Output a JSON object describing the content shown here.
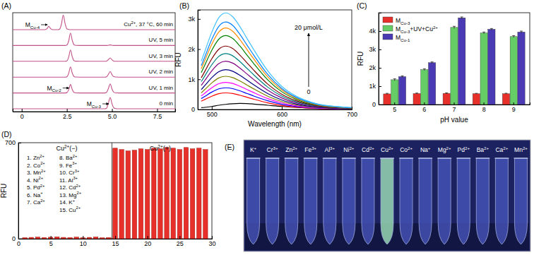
{
  "chart_data": [
    {
      "type": "line",
      "title": "(A)",
      "x": [
        -0.5,
        1.3,
        1.4,
        1.5,
        1.6,
        1.7,
        2.0,
        2.1,
        2.2,
        2.3,
        2.4,
        2.5,
        2.6,
        2.7,
        2.8,
        2.9,
        3.0,
        3.2,
        4.6,
        4.7,
        4.8,
        4.9,
        5.0,
        5.1,
        5.2,
        5.4,
        8.5
      ],
      "xlim": [
        -0.5,
        8.5
      ],
      "xticks": [
        0,
        2.5,
        {
          "value": 5,
          "label": "5.0"
        },
        7.5
      ],
      "ylim": [
        0,
        1.5
      ],
      "tick_labels": "x",
      "color": "#c2528a",
      "series": [
        {
          "name": "Cu2+, 37 °C, 60 min",
          "values": [
            0,
            0,
            0.08,
            0.3,
            0.08,
            0,
            0,
            0.05,
            0.5,
            1.3,
            0.55,
            0.08,
            0.02,
            0,
            0,
            0,
            0,
            0,
            0,
            0,
            0,
            0,
            0,
            0,
            0,
            0,
            0
          ],
          "annotation": {
            "text": "MCu-4",
            "x": 1.5
          }
        },
        {
          "name": "UV, 5 min",
          "values": [
            0,
            0,
            0,
            0,
            0,
            0,
            0,
            0,
            0,
            0,
            0,
            0.04,
            0.4,
            1.1,
            0.45,
            0.06,
            0.01,
            0,
            0,
            0,
            0.02,
            0.05,
            0.02,
            0,
            0,
            0,
            0
          ]
        },
        {
          "name": "UV, 3 min",
          "values": [
            0,
            0,
            0,
            0,
            0,
            0,
            0,
            0,
            0,
            0,
            0,
            0.03,
            0.37,
            1.0,
            0.4,
            0.05,
            0.01,
            0,
            0,
            0.02,
            0.15,
            0.3,
            0.13,
            0.02,
            0,
            0,
            0
          ]
        },
        {
          "name": "UV, 2 min",
          "values": [
            0,
            0,
            0,
            0,
            0,
            0,
            0,
            0,
            0,
            0,
            0,
            0.03,
            0.33,
            0.9,
            0.36,
            0.05,
            0.01,
            0,
            0,
            0.03,
            0.25,
            0.5,
            0.22,
            0.04,
            0.01,
            0,
            0
          ]
        },
        {
          "name": "UV, 1 min",
          "values": [
            0,
            0,
            0,
            0,
            0,
            0,
            0,
            0,
            0,
            0,
            0,
            0.03,
            0.28,
            0.75,
            0.3,
            0.04,
            0.01,
            0,
            0,
            0.05,
            0.4,
            0.8,
            0.35,
            0.06,
            0.01,
            0,
            0
          ],
          "annotation": {
            "text": "MCu-2",
            "x": 2.7
          }
        },
        {
          "name": "0 min",
          "values": [
            0,
            0,
            0,
            0,
            0,
            0,
            0,
            0,
            0,
            0,
            0,
            0,
            0,
            0,
            0,
            0,
            0,
            0,
            0,
            0.05,
            0.5,
            1.0,
            0.45,
            0.08,
            0.02,
            0,
            0
          ],
          "annotation": {
            "text": "MCu-3",
            "x": 4.9
          }
        }
      ]
    },
    {
      "type": "line",
      "title": "(B)",
      "xlabel": "Wavelength (nm)",
      "ylabel": "RFU",
      "x": [
        485,
        490,
        500,
        510,
        520,
        530,
        540,
        550,
        560,
        580,
        600,
        620,
        650,
        680,
        700
      ],
      "xlim": [
        480,
        700
      ],
      "xticks": [
        500,
        600,
        700
      ],
      "ylim": [
        0,
        3300
      ],
      "yticks": [
        0,
        {
          "value": 1000,
          "label": "1k"
        },
        {
          "value": 2000,
          "label": "2k"
        },
        {
          "value": 3000,
          "label": "3k"
        }
      ],
      "annotations": [
        "20 μmol/L",
        "0"
      ],
      "series": [
        {
          "color": "#000000",
          "values": [
            60,
            70,
            100,
            140,
            170,
            190,
            200,
            195,
            180,
            140,
            100,
            70,
            35,
            20,
            15
          ]
        },
        {
          "color": "#ff0000",
          "values": [
            275,
            330,
            440,
            523,
            550,
            528,
            473,
            407,
            341,
            220,
            132,
            77,
            33,
            17,
            11
          ]
        },
        {
          "color": "#0000ff",
          "values": [
            360,
            432,
            576,
            684,
            720,
            691,
            619,
            533,
            446,
            288,
            173,
            101,
            43,
            22,
            14
          ]
        },
        {
          "color": "#ff00ff",
          "values": [
            450,
            540,
            720,
            855,
            900,
            864,
            774,
            666,
            558,
            360,
            216,
            126,
            54,
            27,
            18
          ]
        },
        {
          "color": "#808000",
          "values": [
            550,
            660,
            880,
            1045,
            1100,
            1056,
            946,
            814,
            682,
            440,
            264,
            154,
            66,
            33,
            22
          ]
        },
        {
          "color": "#000080",
          "values": [
            660,
            792,
            1056,
            1254,
            1320,
            1267,
            1135,
            977,
            818,
            528,
            317,
            185,
            79,
            40,
            26
          ]
        },
        {
          "color": "#800080",
          "values": [
            800,
            960,
            1280,
            1520,
            1600,
            1536,
            1376,
            1184,
            992,
            640,
            384,
            224,
            96,
            48,
            32
          ]
        },
        {
          "color": "#008080",
          "values": [
            925,
            1110,
            1480,
            1758,
            1850,
            1776,
            1591,
            1369,
            1147,
            740,
            444,
            259,
            111,
            56,
            37
          ]
        },
        {
          "color": "#800000",
          "values": [
            1050,
            1260,
            1680,
            1995,
            2100,
            2016,
            1806,
            1554,
            1302,
            840,
            504,
            294,
            126,
            63,
            42
          ]
        },
        {
          "color": "#008000",
          "values": [
            1225,
            1470,
            1960,
            2328,
            2450,
            2352,
            2107,
            1813,
            1519,
            980,
            588,
            343,
            147,
            74,
            49
          ]
        },
        {
          "color": "#ff8c00",
          "values": [
            1350,
            1620,
            2160,
            2565,
            2700,
            2592,
            2322,
            1998,
            1674,
            1080,
            648,
            378,
            162,
            81,
            54
          ]
        },
        {
          "color": "#0080ff",
          "values": [
            1450,
            1740,
            2320,
            2755,
            2900,
            2784,
            2494,
            2146,
            1798,
            1160,
            696,
            406,
            174,
            87,
            58
          ]
        },
        {
          "color": "#40c0ff",
          "values": [
            1600,
            1920,
            2560,
            3040,
            3200,
            3072,
            2752,
            2368,
            1984,
            1280,
            768,
            448,
            192,
            96,
            64
          ]
        }
      ]
    },
    {
      "type": "bar",
      "title": "(C)",
      "xlabel": "pH value",
      "ylabel": "RFU",
      "categories": [
        "5",
        "6",
        "7",
        "8",
        "9"
      ],
      "ylim": [
        0,
        5000
      ],
      "yticks": [
        0,
        {
          "value": 1000,
          "label": "1k"
        },
        {
          "value": 2000,
          "label": "2k"
        },
        {
          "value": 3000,
          "label": "3k"
        },
        {
          "value": 4000,
          "label": "4k"
        }
      ],
      "legend": "top-left",
      "series": [
        {
          "name": "MCu-3",
          "color": "#e8302a",
          "values": [
            580,
            600,
            610,
            590,
            590
          ],
          "errors": [
            30,
            25,
            25,
            20,
            25
          ]
        },
        {
          "name": "MCu-3+UV+Cu2+",
          "color": "#66cc66",
          "values": [
            1350,
            1900,
            4200,
            3900,
            3700
          ],
          "errors": [
            50,
            50,
            60,
            50,
            50
          ]
        },
        {
          "name": "MCu-1",
          "color": "#4a3bb5",
          "values": [
            1520,
            2280,
            4720,
            4100,
            3950
          ],
          "errors": [
            40,
            40,
            50,
            40,
            50
          ]
        }
      ]
    },
    {
      "type": "bar",
      "title": "(D)",
      "ylabel": "RFU",
      "x": [
        1,
        2,
        3,
        4,
        5,
        6,
        7,
        8,
        9,
        10,
        11,
        12,
        13,
        14,
        15,
        16,
        17,
        18,
        19,
        20,
        21,
        22,
        23,
        24,
        25,
        26,
        27,
        28,
        29
      ],
      "values": [
        8,
        10,
        12,
        9,
        11,
        14,
        10,
        9,
        12,
        8,
        10,
        13,
        7,
        9,
        660,
        650,
        640,
        645,
        655,
        650,
        660,
        655,
        665,
        660,
        650,
        665,
        655,
        660,
        650
      ],
      "color": "#e8302a",
      "xlim": [
        0,
        30
      ],
      "xticks": [
        0,
        5,
        10,
        15,
        20,
        25,
        30
      ],
      "ylim": [
        0,
        700
      ],
      "yticks": [
        0,
        700
      ],
      "annotations": [
        "Cu2+(−)",
        "Cu2+(+)",
        "1. Zn2+",
        "2. Co2+",
        "3. Mn2+",
        "4. Ni2+",
        "5. Pd2+",
        "6. Na+",
        "7. Ca2+",
        "8. Ba2+",
        "9. Fe3+",
        "10. Cr3+",
        "11. Al3+",
        "12. Cd2+",
        "13. Mg2+",
        "14. K+",
        "15. Cu2+"
      ]
    },
    {
      "type": "image",
      "title": "(E)",
      "categories": [
        "K+",
        "Cr3+",
        "Zn2+",
        "Fe3+",
        "Al3+",
        "Ni2+",
        "Cd2+",
        "Cu2+",
        "Co2+",
        "Na+",
        "Mg2+",
        "Pd2+",
        "Ba2+",
        "Ca2+",
        "Mn2+"
      ],
      "colors": [
        "#4a58c0",
        "#4a58c0",
        "#4a58c0",
        "#4a58c0",
        "#4a58c0",
        "#4a58c0",
        "#4a58c0",
        "#a8f0c0",
        "#4a58c0",
        "#4a58c0",
        "#4a58c0",
        "#4a58c0",
        "#4a58c0",
        "#4a58c0",
        "#4a58c0"
      ]
    }
  ]
}
